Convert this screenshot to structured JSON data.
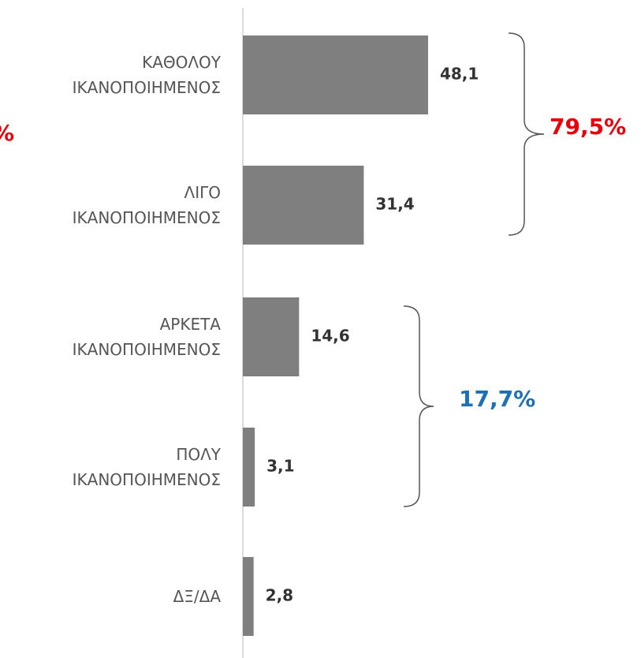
{
  "chart_data": {
    "type": "bar",
    "orientation": "horizontal",
    "categories": [
      "ΚΑΘΟΛΟΥ\nΙΚΑΝΟΠΟΙΗΜΕΝΟΣ",
      "ΛΙΓΟ\nΙΚΑΝΟΠΟΙΗΜΕΝΟΣ",
      "ΑΡΚΕΤΑ\nΙΚΑΝΟΠΟΙΗΜΕΝΟΣ",
      "ΠΟΛΥ\nΙΚΑΝΟΠΟΙΗΜΕΝΟΣ",
      "ΔΞ/ΔΑ"
    ],
    "values": [
      48.1,
      31.4,
      14.6,
      3.1,
      2.8
    ],
    "value_labels": [
      "48,1",
      "31,4",
      "14,6",
      "3,1",
      "2,8"
    ],
    "color": "#7f7f7f",
    "annotations": [
      {
        "text": "79,5%",
        "color": "#e8000b"
      },
      {
        "text": "17,7%",
        "color": "#1f6fb5"
      },
      {
        "text": "%",
        "color": "#e8000b"
      }
    ]
  }
}
